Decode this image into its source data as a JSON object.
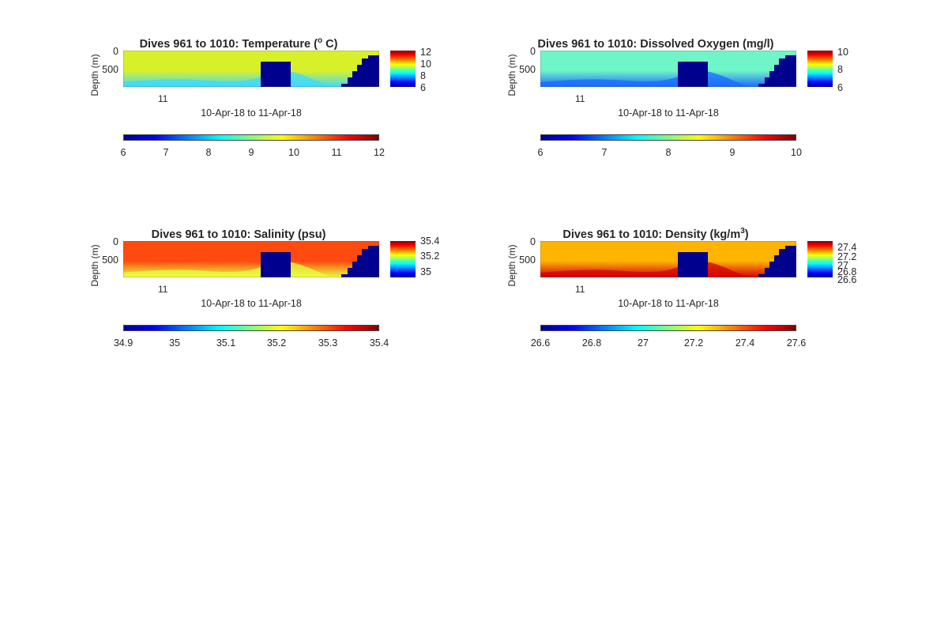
{
  "chart_data": [
    {
      "type": "heatmap",
      "title_main": "Dives 961 to 1010: Temperature (",
      "title_sup": "o",
      "title_end": " C)",
      "ylabel": "Depth (m)",
      "yticks": [
        "0",
        "500"
      ],
      "xticks": [
        "11"
      ],
      "xlabel": "10-Apr-18 to 11-Apr-18",
      "colorbar_side": [
        "12",
        "10",
        "8",
        "6"
      ],
      "colorbar_bottom": [
        "6",
        "7",
        "8",
        "9",
        "10",
        "11",
        "12"
      ],
      "clim": [
        6,
        12
      ],
      "colors": {
        "background": "#d8f02a",
        "deep": "#3fd9ff",
        "mask": "#00008f"
      }
    },
    {
      "type": "heatmap",
      "title_main": "Dives 961 to 1010: Dissolved Oxygen (mg/l)",
      "title_sup": "",
      "title_end": "",
      "ylabel": "Depth (m)",
      "yticks": [
        "0",
        "500"
      ],
      "xticks": [
        "11"
      ],
      "xlabel": "10-Apr-18 to 11-Apr-18",
      "colorbar_side": [
        "10",
        "8",
        "6"
      ],
      "colorbar_bottom": [
        "6",
        "7",
        "8",
        "9",
        "10"
      ],
      "clim": [
        6,
        10
      ],
      "colors": {
        "background": "#6ff5c8",
        "deep": "#1a6bff",
        "mask": "#00008f"
      }
    },
    {
      "type": "heatmap",
      "title_main": "Dives 961 to 1010: Salinity (psu)",
      "title_sup": "",
      "title_end": "",
      "ylabel": "Depth (m)",
      "yticks": [
        "0",
        "500"
      ],
      "xticks": [
        "11"
      ],
      "xlabel": "10-Apr-18 to 11-Apr-18",
      "colorbar_side": [
        "35.4",
        "35.2",
        "35"
      ],
      "colorbar_bottom": [
        "34.9",
        "35",
        "35.1",
        "35.2",
        "35.3",
        "35.4"
      ],
      "clim": [
        34.9,
        35.4
      ],
      "colors": {
        "background": "#ff4a10",
        "deep": "#e6ff40",
        "mask": "#00008f"
      }
    },
    {
      "type": "heatmap",
      "title_main": "Dives 961 to 1010: Density (kg/m",
      "title_sup": "3",
      "title_end": ")",
      "ylabel": "Depth (m)",
      "yticks": [
        "0",
        "500"
      ],
      "xticks": [
        "11"
      ],
      "xlabel": "10-Apr-18 to 11-Apr-18",
      "colorbar_side": [
        "27.4",
        "27.2",
        "27",
        "26.8",
        "26.6"
      ],
      "colorbar_bottom": [
        "26.6",
        "26.8",
        "27",
        "27.2",
        "27.4",
        "27.6"
      ],
      "clim": [
        26.6,
        27.6
      ],
      "colors": {
        "background": "#ffb400",
        "deep": "#d40000",
        "mask": "#00008f"
      }
    }
  ]
}
